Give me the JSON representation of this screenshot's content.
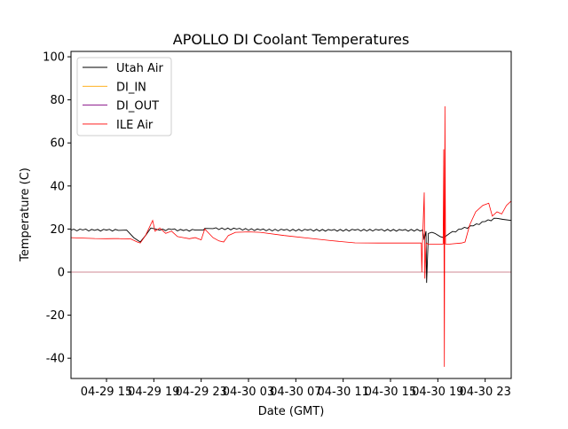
{
  "chart_data": {
    "type": "line",
    "title": "APOLLO DI Coolant Temperatures",
    "xlabel": "Date (GMT)",
    "ylabel": "Temperature (C)",
    "x_units": "hours since 04-29 00:00 GMT",
    "xlim": [
      12,
      49.2
    ],
    "ylim": [
      -49.4,
      102.5
    ],
    "xticks": [
      {
        "value": 15,
        "label": "04-29 15"
      },
      {
        "value": 19,
        "label": "04-29 19"
      },
      {
        "value": 23,
        "label": "04-29 23"
      },
      {
        "value": 27,
        "label": "04-30 03"
      },
      {
        "value": 31,
        "label": "04-30 07"
      },
      {
        "value": 35,
        "label": "04-30 11"
      },
      {
        "value": 39,
        "label": "04-30 15"
      },
      {
        "value": 43,
        "label": "04-30 19"
      },
      {
        "value": 47,
        "label": "04-30 23"
      }
    ],
    "yticks": [
      -40,
      -20,
      0,
      20,
      40,
      60,
      80,
      100
    ],
    "grid": false,
    "legend_position": "top-left",
    "series": [
      {
        "name": "Utah Air",
        "color": "#000000",
        "x": [
          12,
          13,
          14,
          15,
          16,
          16.7,
          17.3,
          17.85,
          18.3,
          18.75,
          19.5,
          20.5,
          21.5,
          22.5,
          23.2,
          23.3,
          24,
          26,
          28,
          30,
          32,
          34,
          36,
          38,
          40,
          41.7,
          41.85,
          42.0,
          42.05,
          42.2,
          42.5,
          42.75,
          43.2,
          43.5,
          44,
          45,
          46,
          47,
          48,
          48.5,
          49.2
        ],
        "y": [
          19.5,
          19.6,
          19.4,
          19.5,
          19.4,
          19.5,
          16,
          14,
          17,
          20.5,
          19.5,
          19.8,
          19.3,
          19.5,
          19.5,
          20.3,
          20.2,
          20,
          19.6,
          19.5,
          19.5,
          19.4,
          19.5,
          19.5,
          19.4,
          19.5,
          15,
          19,
          -5,
          18,
          18.5,
          18,
          16.5,
          16,
          18,
          20,
          21.5,
          23.5,
          25,
          24.5,
          24
        ]
      },
      {
        "name": "DI_IN",
        "color": "#ffa500",
        "x": [
          12,
          49.2
        ],
        "y": [
          0,
          0
        ]
      },
      {
        "name": "DI_OUT",
        "color": "#800080",
        "x": [
          12,
          49.2
        ],
        "y": [
          0,
          0
        ]
      },
      {
        "name": "ILE Air",
        "color": "#ff0000",
        "x": [
          12,
          13,
          14,
          15,
          16,
          16.5,
          17,
          17.6,
          17.85,
          18.3,
          18.9,
          19.1,
          19.5,
          20,
          20.5,
          21,
          21.5,
          22,
          22.5,
          23,
          23.3,
          24,
          24.5,
          24.9,
          25.3,
          25.9,
          27,
          28,
          30,
          32,
          34,
          36,
          38,
          40,
          41.6,
          41.65,
          41.7,
          41.85,
          41.9,
          42.0,
          42.05,
          42.15,
          42.3,
          43,
          43.45,
          43.5,
          43.55,
          43.6,
          43.65,
          43.75,
          44,
          45,
          45.3,
          45.7,
          46.2,
          46.8,
          47.3,
          47.6,
          48,
          48.4,
          48.8,
          49.2
        ],
        "y": [
          16,
          15.8,
          15.6,
          15.5,
          15.6,
          15.4,
          15.5,
          14,
          13.5,
          17,
          24,
          19,
          20.5,
          18,
          19,
          16.5,
          16,
          15.5,
          16,
          15,
          20,
          16,
          14.5,
          14,
          17,
          18.5,
          18.7,
          18.5,
          17,
          15.8,
          14.6,
          13.6,
          13.5,
          13.5,
          13.5,
          0,
          13,
          37,
          -3,
          13,
          13.5,
          13,
          13,
          13,
          13,
          57,
          -44,
          77,
          13,
          13,
          13,
          13.5,
          14,
          22,
          28,
          31,
          32,
          26,
          28,
          27,
          31,
          33
        ]
      }
    ]
  }
}
